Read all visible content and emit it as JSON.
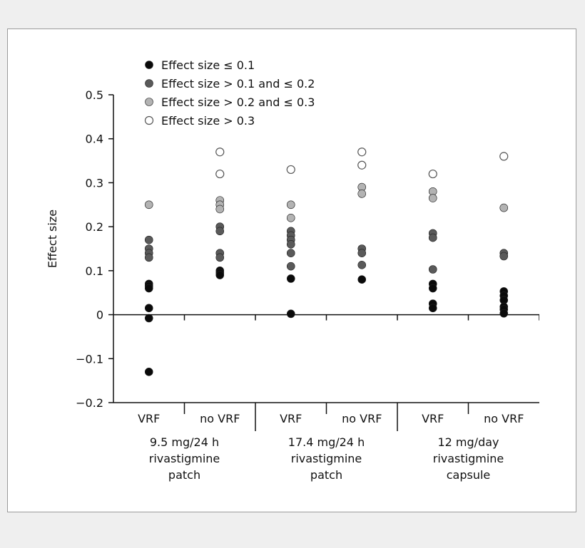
{
  "colors": {
    "le_0_1": "#0a0a0a",
    "gt_0_1_le_0_2": "#5a5a5a",
    "gt_0_2_le_0_3": "#b3b3b3",
    "gt_0_3": "#ffffff",
    "axis": "#111111"
  },
  "chart_data": {
    "type": "scatter",
    "ylabel": "Effect size",
    "ylim": [
      -0.2,
      0.5
    ],
    "yticks": [
      "0.5",
      "0.4",
      "0.3",
      "0.2",
      "0.1",
      "0",
      "−0.1",
      "−0.2"
    ],
    "ytick_values": [
      0.5,
      0.4,
      0.3,
      0.2,
      0.1,
      0,
      -0.1,
      -0.2
    ],
    "legend_position": "top-left",
    "legend": [
      {
        "key": "le_0_1",
        "label": "Effect size ≤ 0.1"
      },
      {
        "key": "gt_0_1_le_0_2",
        "label": "Effect size > 0.1 and ≤ 0.2"
      },
      {
        "key": "gt_0_2_le_0_3",
        "label": "Effect size > 0.2 and ≤ 0.3"
      },
      {
        "key": "gt_0_3",
        "label": "Effect size > 0.3"
      }
    ],
    "groups": [
      {
        "lines": [
          "9.5 mg/24 h",
          "rivastigmine",
          "patch"
        ]
      },
      {
        "lines": [
          "17.4 mg/24 h",
          "rivastigmine",
          "patch"
        ]
      },
      {
        "lines": [
          "12 mg/day",
          "rivastigmine",
          "capsule"
        ]
      }
    ],
    "categories": [
      {
        "label": "VRF",
        "values": [
          0.25,
          0.17,
          0.15,
          0.14,
          0.13,
          0.07,
          0.065,
          0.06,
          0.015,
          -0.008,
          -0.13
        ]
      },
      {
        "label": "no VRF",
        "values": [
          0.37,
          0.32,
          0.26,
          0.25,
          0.24,
          0.2,
          0.19,
          0.14,
          0.13,
          0.1,
          0.095,
          0.09
        ]
      },
      {
        "label": "VRF",
        "values": [
          0.33,
          0.25,
          0.22,
          0.19,
          0.18,
          0.17,
          0.16,
          0.14,
          0.11,
          0.082,
          0.002
        ]
      },
      {
        "label": "no VRF",
        "values": [
          0.37,
          0.34,
          0.29,
          0.275,
          0.15,
          0.14,
          0.113,
          0.08
        ]
      },
      {
        "label": "VRF",
        "values": [
          0.32,
          0.28,
          0.265,
          0.185,
          0.175,
          0.103,
          0.07,
          0.06,
          0.025,
          0.015
        ]
      },
      {
        "label": "no VRF",
        "values": [
          0.36,
          0.243,
          0.14,
          0.133,
          0.053,
          0.043,
          0.033,
          0.018,
          0.012,
          0.003
        ]
      }
    ]
  }
}
